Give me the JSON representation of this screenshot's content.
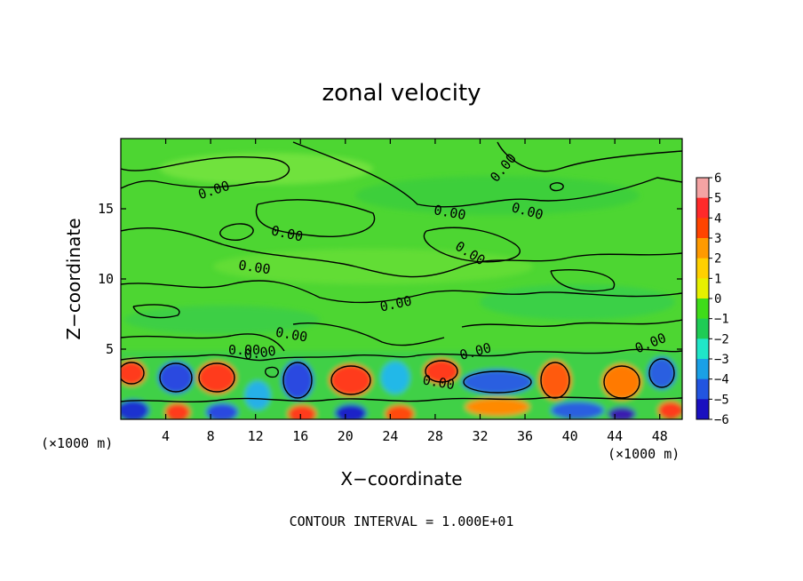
{
  "chart_data": {
    "type": "heatmap",
    "title": "zonal velocity",
    "xlabel": "X−coordinate",
    "ylabel": "Z−coordinate",
    "x_unit_left": "(×1000 m)",
    "x_unit_right": "(×1000 m)",
    "xlim": [
      0,
      50
    ],
    "ylim": [
      0,
      20
    ],
    "xticks": [
      "4",
      "8",
      "12",
      "16",
      "20",
      "24",
      "28",
      "32",
      "36",
      "40",
      "44",
      "48"
    ],
    "xtick_values": [
      4,
      8,
      12,
      16,
      20,
      24,
      28,
      32,
      36,
      40,
      44,
      48
    ],
    "yticks": [
      "5",
      "10",
      "15"
    ],
    "ytick_values": [
      5,
      10,
      15
    ],
    "colorbar": {
      "ticks": [
        "6",
        "5",
        "4",
        "3",
        "2",
        "1",
        "0",
        "−1",
        "−2",
        "−3",
        "−4",
        "−5",
        "−6"
      ],
      "values": [
        6,
        5,
        4,
        3,
        2,
        1,
        0,
        -1,
        -2,
        -3,
        -4,
        -5,
        -6
      ],
      "colors": [
        "#f4a3a3",
        "#ff2a2a",
        "#ff4400",
        "#ff9a00",
        "#ffd000",
        "#e6f000",
        "#3fdc1a",
        "#1fcc55",
        "#20e6c8",
        "#1aa0e6",
        "#2255e0",
        "#1a10c0",
        "#7a1aa8"
      ]
    },
    "contour_labels": [
      {
        "text": "0.00",
        "x": 8.3,
        "z": 16.3,
        "angle": -18
      },
      {
        "text": "0.00",
        "x": 14.8,
        "z": 13.2,
        "angle": 12
      },
      {
        "text": "0.00",
        "x": 11.9,
        "z": 10.8,
        "angle": 8
      },
      {
        "text": "0.00",
        "x": 15.2,
        "z": 6.0,
        "angle": 10
      },
      {
        "text": "0.00",
        "x": 12.4,
        "z": 4.7,
        "angle": -8
      },
      {
        "text": "0.00",
        "x": 11.0,
        "z": 4.9,
        "angle": 0
      },
      {
        "text": "0.00",
        "x": 24.5,
        "z": 8.2,
        "angle": -12
      },
      {
        "text": "0.00",
        "x": 29.3,
        "z": 14.7,
        "angle": 10
      },
      {
        "text": "0.00",
        "x": 31.1,
        "z": 11.8,
        "angle": 32
      },
      {
        "text": "0.00",
        "x": 34.1,
        "z": 17.9,
        "angle": -50
      },
      {
        "text": "0.00",
        "x": 36.2,
        "z": 14.8,
        "angle": 15
      },
      {
        "text": "0.00",
        "x": 31.6,
        "z": 4.8,
        "angle": -15
      },
      {
        "text": "0.00",
        "x": 28.3,
        "z": 2.6,
        "angle": 10
      },
      {
        "text": "0.00",
        "x": 47.2,
        "z": 5.4,
        "angle": -22
      }
    ],
    "footer": "CONTOUR INTERVAL = 1.000E+01"
  }
}
